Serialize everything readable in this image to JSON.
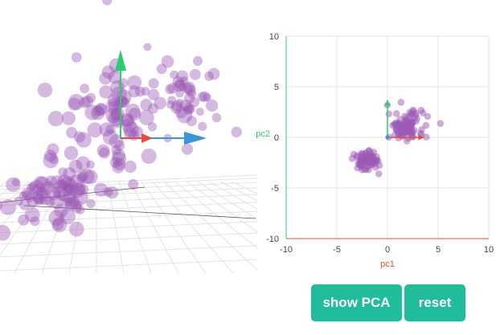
{
  "buttons": {
    "show_pca": "show PCA",
    "reset": "reset"
  },
  "colors": {
    "point": "#9b59b6",
    "x_axis": "#e74c3c",
    "y_axis": "#2ecc71",
    "z_axis": "#3498db",
    "button": "#20bc9c",
    "grid": "#e6e6e6"
  },
  "chart_data": [
    {
      "type": "scatter",
      "title": "",
      "xlabel": "pc1",
      "ylabel": "pc2",
      "xlim": [
        -10,
        10
      ],
      "ylim": [
        -10,
        10
      ],
      "xticks": [
        -10,
        -5,
        0,
        5,
        10
      ],
      "yticks": [
        -10,
        -5,
        0,
        5,
        10
      ],
      "grid": true,
      "principal_axes": [
        {
          "name": "pc1",
          "from": [
            0,
            0
          ],
          "to": [
            3.6,
            0
          ],
          "color": "#e74c3c"
        },
        {
          "name": "pc2",
          "from": [
            0,
            0
          ],
          "to": [
            0,
            3.7
          ],
          "color": "#2ecc71"
        }
      ],
      "clusters": [
        {
          "name": "upper-right cluster",
          "center": [
            1.8,
            1.1
          ],
          "spread": [
            1.6,
            1.3
          ],
          "count": 110
        },
        {
          "name": "lower-left cluster",
          "center": [
            -2.0,
            -2.3
          ],
          "spread": [
            1.2,
            1.0
          ],
          "count": 75
        }
      ]
    },
    {
      "type": "scatter-3d",
      "title": "",
      "axes": [
        {
          "name": "x",
          "color": "#e74c3c"
        },
        {
          "name": "y",
          "color": "#2ecc71"
        },
        {
          "name": "z",
          "color": "#3498db"
        }
      ],
      "grid": true
    }
  ]
}
